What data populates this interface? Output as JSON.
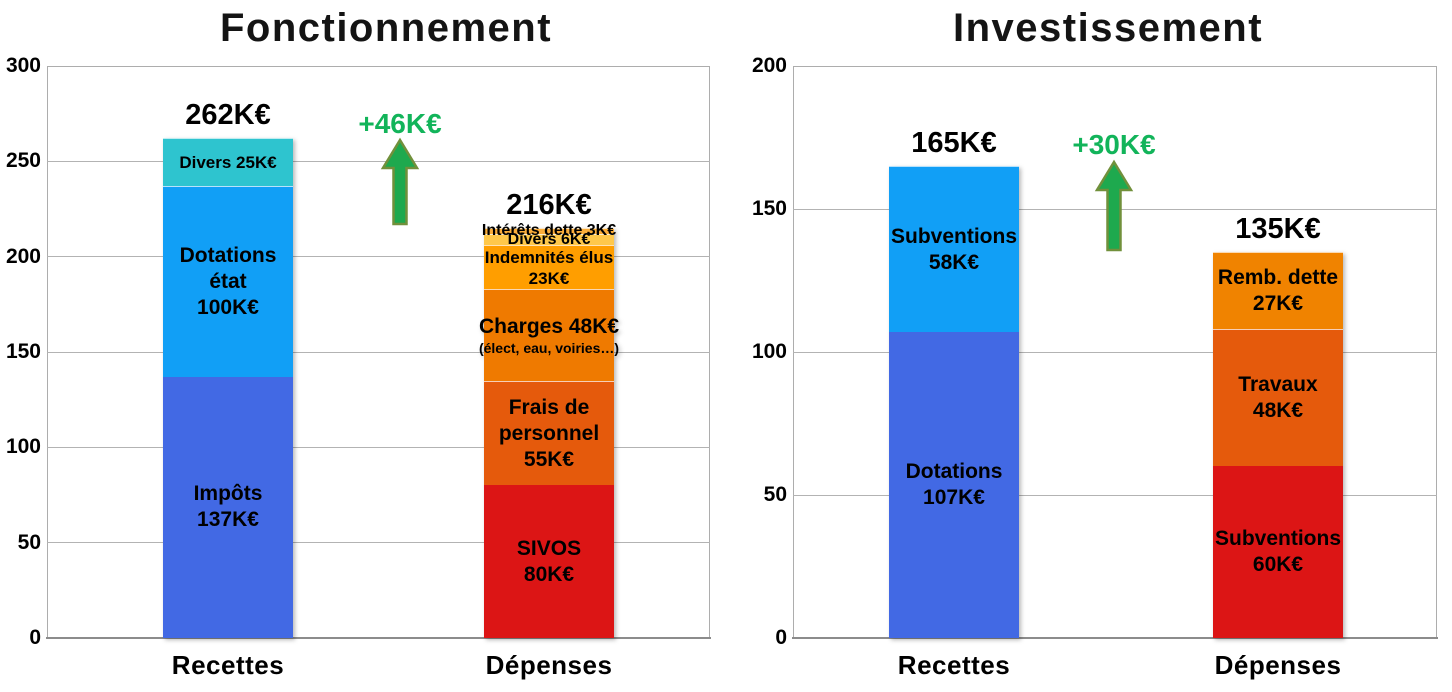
{
  "unit": "K€",
  "chart_data": [
    {
      "type": "bar",
      "stacked": true,
      "title": "Fonctionnement",
      "xlabel": "",
      "ylabel": "",
      "ylim": [
        0,
        300
      ],
      "ytick_step": 50,
      "grid": true,
      "legend": false,
      "categories": [
        "Recettes",
        "Dépenses"
      ],
      "annotation": {
        "label": "+46K€",
        "value": 46,
        "text_color": "#12B45A",
        "arrow_fill": "#1EA94E",
        "arrow_stroke": "#71903B"
      },
      "bars": [
        {
          "category": "Recettes",
          "total": 262,
          "total_label": "262K€",
          "segments": [
            {
              "name": "Impôts",
              "value": 137,
              "label_lines": [
                "Impôts",
                "137K€"
              ],
              "color": "#4269E4"
            },
            {
              "name": "Dotations état",
              "value": 100,
              "label_lines": [
                "Dotations",
                "état",
                "100K€"
              ],
              "color": "#119FF6"
            },
            {
              "name": "Divers",
              "value": 25,
              "label_lines": [
                "Divers 25K€"
              ],
              "color": "#2EC4CF",
              "label_size": "small"
            }
          ]
        },
        {
          "category": "Dépenses",
          "total": 216,
          "total_label": "216K€",
          "segments": [
            {
              "name": "SIVOS",
              "value": 80,
              "label_lines": [
                "SIVOS",
                "80K€"
              ],
              "color": "#DC1515"
            },
            {
              "name": "Frais de personnel",
              "value": 55,
              "label_lines": [
                "Frais de",
                "personnel",
                "55K€"
              ],
              "color": "#E55A0C"
            },
            {
              "name": "Charges",
              "value": 48,
              "label_lines": [
                "Charges 48K€",
                "(élect, eau, voiries…)"
              ],
              "color": "#EF7A00",
              "sub_line_index": 1
            },
            {
              "name": "Indemnités élus",
              "value": 23,
              "label_lines": [
                "Indemnités élus",
                "23K€"
              ],
              "color": "#FF9E00",
              "label_size": "small"
            },
            {
              "name": "Divers",
              "value": 6,
              "label_lines": [
                "Divers 6K€"
              ],
              "color": "#FFC84A",
              "label_overflow": true
            },
            {
              "name": "Intérêts dette",
              "value": 3,
              "label_lines": [
                "Intérêts dette 3K€"
              ],
              "color": "#FAAD3A",
              "label_overflow": true
            }
          ]
        }
      ]
    },
    {
      "type": "bar",
      "stacked": true,
      "title": "Investissement",
      "xlabel": "",
      "ylabel": "",
      "ylim": [
        0,
        200
      ],
      "ytick_step": 50,
      "grid": true,
      "legend": false,
      "categories": [
        "Recettes",
        "Dépenses"
      ],
      "annotation": {
        "label": "+30K€",
        "value": 30,
        "text_color": "#12B45A",
        "arrow_fill": "#1EA94E",
        "arrow_stroke": "#71903B"
      },
      "bars": [
        {
          "category": "Recettes",
          "total": 165,
          "total_label": "165K€",
          "segments": [
            {
              "name": "Dotations",
              "value": 107,
              "label_lines": [
                "Dotations",
                "107K€"
              ],
              "color": "#4269E4"
            },
            {
              "name": "Subventions",
              "value": 58,
              "label_lines": [
                "Subventions",
                "58K€"
              ],
              "color": "#119FF6"
            }
          ]
        },
        {
          "category": "Dépenses",
          "total": 135,
          "total_label": "135K€",
          "segments": [
            {
              "name": "Subventions",
              "value": 60,
              "label_lines": [
                "Subventions",
                "60K€"
              ],
              "color": "#DC1515"
            },
            {
              "name": "Travaux",
              "value": 48,
              "label_lines": [
                "Travaux",
                "48K€"
              ],
              "color": "#E55A0C"
            },
            {
              "name": "Remb. dette",
              "value": 27,
              "label_lines": [
                "Remb. dette",
                "27K€"
              ],
              "color": "#F08300"
            }
          ]
        }
      ]
    }
  ]
}
